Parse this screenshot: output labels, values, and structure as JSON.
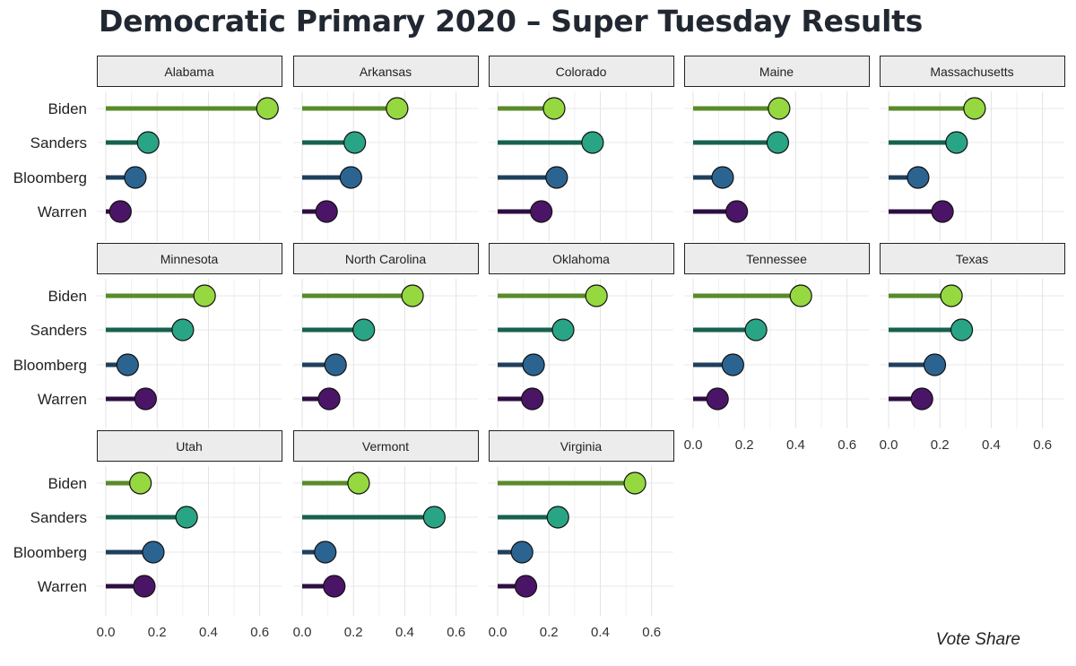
{
  "chart_data": {
    "type": "lollipop",
    "title": "Democratic Primary 2020 – Super Tuesday Results",
    "xlabel": "Vote Share",
    "xlim": [
      0,
      0.65
    ],
    "xticks": [
      0.0,
      0.2,
      0.4,
      0.6
    ],
    "xtick_labels": [
      "0.0",
      "0.2",
      "0.4",
      "0.6"
    ],
    "grid": true,
    "candidates": [
      "Biden",
      "Sanders",
      "Bloomberg",
      "Warren"
    ],
    "colors": {
      "Biden": {
        "point": "#95d840",
        "stem": "#5a8a2a"
      },
      "Sanders": {
        "point": "#29a586",
        "stem": "#17614f"
      },
      "Bloomberg": {
        "point": "#2c6491",
        "stem": "#1f3f5c"
      },
      "Warren": {
        "point": "#4b1567",
        "stem": "#2e0e42"
      }
    },
    "panels": [
      {
        "state": "Alabama",
        "values": {
          "Biden": 0.63,
          "Sanders": 0.165,
          "Bloomberg": 0.115,
          "Warren": 0.057
        }
      },
      {
        "state": "Arkansas",
        "values": {
          "Biden": 0.37,
          "Sanders": 0.205,
          "Bloomberg": 0.19,
          "Warren": 0.095
        }
      },
      {
        "state": "Colorado",
        "values": {
          "Biden": 0.22,
          "Sanders": 0.37,
          "Bloomberg": 0.23,
          "Warren": 0.17
        }
      },
      {
        "state": "Maine",
        "values": {
          "Biden": 0.335,
          "Sanders": 0.33,
          "Bloomberg": 0.115,
          "Warren": 0.17
        }
      },
      {
        "state": "Massachusetts",
        "values": {
          "Biden": 0.335,
          "Sanders": 0.265,
          "Bloomberg": 0.115,
          "Warren": 0.21
        }
      },
      {
        "state": "Minnesota",
        "values": {
          "Biden": 0.385,
          "Sanders": 0.3,
          "Bloomberg": 0.085,
          "Warren": 0.155
        }
      },
      {
        "state": "North Carolina",
        "values": {
          "Biden": 0.43,
          "Sanders": 0.24,
          "Bloomberg": 0.13,
          "Warren": 0.105
        }
      },
      {
        "state": "Oklahoma",
        "values": {
          "Biden": 0.385,
          "Sanders": 0.255,
          "Bloomberg": 0.14,
          "Warren": 0.135
        }
      },
      {
        "state": "Tennessee",
        "values": {
          "Biden": 0.42,
          "Sanders": 0.245,
          "Bloomberg": 0.155,
          "Warren": 0.095
        }
      },
      {
        "state": "Texas",
        "values": {
          "Biden": 0.245,
          "Sanders": 0.285,
          "Bloomberg": 0.18,
          "Warren": 0.13
        }
      },
      {
        "state": "Utah",
        "values": {
          "Biden": 0.135,
          "Sanders": 0.315,
          "Bloomberg": 0.185,
          "Warren": 0.15
        }
      },
      {
        "state": "Vermont",
        "values": {
          "Biden": 0.22,
          "Sanders": 0.515,
          "Bloomberg": 0.09,
          "Warren": 0.125
        }
      },
      {
        "state": "Virginia",
        "values": {
          "Biden": 0.535,
          "Sanders": 0.235,
          "Bloomberg": 0.095,
          "Warren": 0.11
        }
      }
    ]
  }
}
